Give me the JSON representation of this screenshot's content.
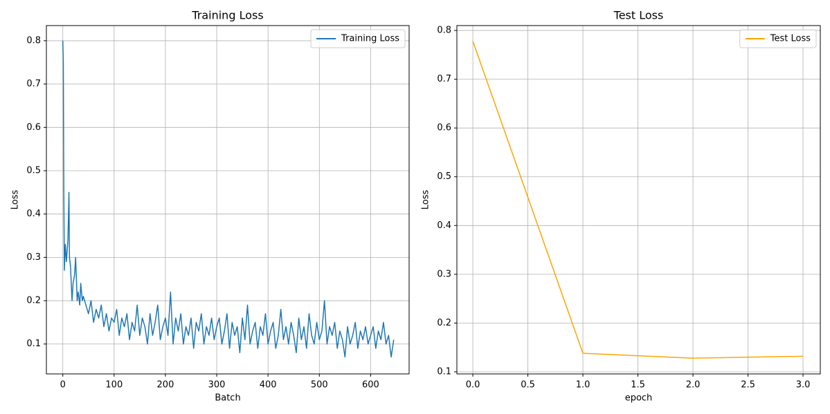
{
  "chart_data": [
    {
      "type": "line",
      "title": "Training Loss",
      "xlabel": "Batch",
      "ylabel": "Loss",
      "x": [
        0,
        1,
        2,
        3,
        5,
        7,
        10,
        12,
        13,
        15,
        18,
        20,
        23,
        25,
        28,
        30,
        33,
        35,
        38,
        40,
        45,
        50,
        55,
        60,
        65,
        70,
        75,
        80,
        85,
        90,
        95,
        100,
        105,
        110,
        115,
        120,
        125,
        130,
        135,
        140,
        145,
        150,
        155,
        160,
        165,
        170,
        175,
        180,
        185,
        190,
        195,
        200,
        205,
        210,
        215,
        220,
        225,
        230,
        235,
        240,
        245,
        250,
        255,
        260,
        265,
        270,
        275,
        280,
        285,
        290,
        295,
        300,
        305,
        310,
        315,
        320,
        325,
        330,
        335,
        340,
        345,
        350,
        355,
        360,
        365,
        370,
        375,
        380,
        385,
        390,
        395,
        400,
        405,
        410,
        415,
        420,
        425,
        430,
        435,
        440,
        445,
        450,
        455,
        460,
        465,
        470,
        475,
        480,
        485,
        490,
        495,
        500,
        505,
        510,
        515,
        520,
        525,
        530,
        535,
        540,
        545,
        550,
        555,
        560,
        565,
        570,
        575,
        580,
        585,
        590,
        595,
        600,
        605,
        610,
        615,
        620,
        625,
        630,
        635,
        640,
        645
      ],
      "series": [
        {
          "name": "Training Loss",
          "color": "#1f77b4",
          "values": [
            0.8,
            0.75,
            0.45,
            0.27,
            0.33,
            0.29,
            0.34,
            0.45,
            0.3,
            0.28,
            0.2,
            0.24,
            0.26,
            0.3,
            0.2,
            0.22,
            0.19,
            0.24,
            0.2,
            0.21,
            0.19,
            0.17,
            0.2,
            0.15,
            0.18,
            0.16,
            0.19,
            0.14,
            0.17,
            0.13,
            0.16,
            0.15,
            0.18,
            0.12,
            0.16,
            0.14,
            0.17,
            0.11,
            0.15,
            0.13,
            0.19,
            0.12,
            0.16,
            0.14,
            0.1,
            0.17,
            0.12,
            0.15,
            0.19,
            0.11,
            0.14,
            0.16,
            0.12,
            0.22,
            0.1,
            0.16,
            0.13,
            0.17,
            0.1,
            0.14,
            0.12,
            0.16,
            0.09,
            0.15,
            0.13,
            0.17,
            0.1,
            0.14,
            0.12,
            0.16,
            0.11,
            0.14,
            0.16,
            0.1,
            0.13,
            0.17,
            0.09,
            0.15,
            0.12,
            0.14,
            0.08,
            0.16,
            0.11,
            0.19,
            0.1,
            0.13,
            0.15,
            0.09,
            0.14,
            0.12,
            0.17,
            0.1,
            0.13,
            0.15,
            0.09,
            0.12,
            0.18,
            0.11,
            0.14,
            0.1,
            0.15,
            0.12,
            0.08,
            0.16,
            0.11,
            0.14,
            0.09,
            0.17,
            0.12,
            0.1,
            0.15,
            0.11,
            0.13,
            0.2,
            0.1,
            0.14,
            0.12,
            0.15,
            0.09,
            0.13,
            0.11,
            0.07,
            0.14,
            0.1,
            0.12,
            0.15,
            0.09,
            0.13,
            0.11,
            0.14,
            0.1,
            0.12,
            0.14,
            0.09,
            0.13,
            0.11,
            0.15,
            0.1,
            0.12,
            0.07,
            0.11
          ]
        }
      ],
      "xlim": [
        -32,
        675
      ],
      "xticks": [
        0,
        100,
        200,
        300,
        400,
        500,
        600
      ],
      "ylim": [
        0.031,
        0.835
      ],
      "yticks": [
        0.1,
        0.2,
        0.3,
        0.4,
        0.5,
        0.6,
        0.7,
        0.8
      ],
      "grid": true,
      "legend": "upper right"
    },
    {
      "type": "line",
      "title": "Test Loss",
      "xlabel": "epoch",
      "ylabel": "Loss",
      "x": [
        0,
        1,
        2,
        3
      ],
      "series": [
        {
          "name": "Test Loss",
          "color": "orange",
          "values": [
            0.778,
            0.138,
            0.128,
            0.132
          ]
        }
      ],
      "xlim": [
        -0.145,
        3.157
      ],
      "xticks": [
        {
          "value": 0,
          "label": "0.0"
        },
        0.5,
        {
          "value": 1,
          "label": "1.0"
        },
        1.5,
        {
          "value": 2,
          "label": "2.0"
        },
        2.5,
        {
          "value": 3,
          "label": "3.0"
        }
      ],
      "ylim": [
        0.0957,
        0.81
      ],
      "yticks": [
        0.1,
        0.2,
        0.3,
        0.4,
        0.5,
        0.6,
        0.7,
        0.8
      ],
      "grid": true,
      "legend": "upper right"
    }
  ]
}
